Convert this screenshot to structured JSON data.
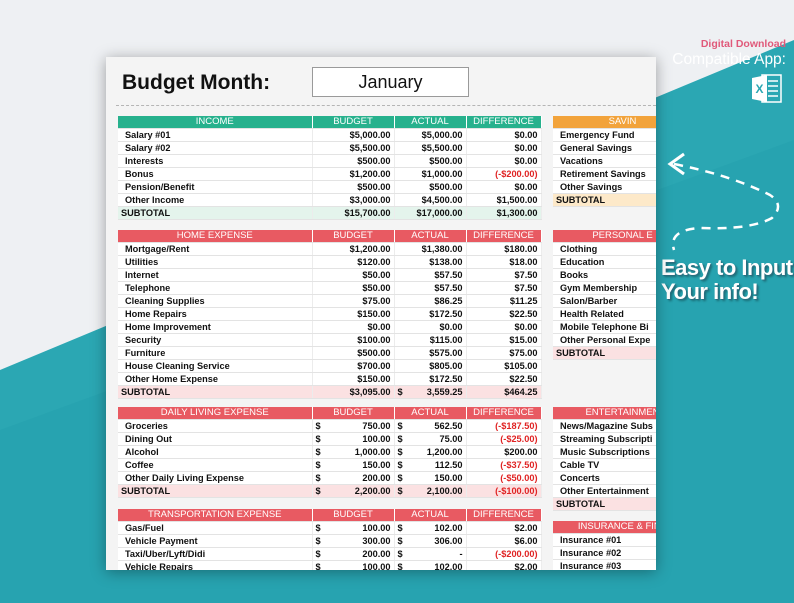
{
  "brand": {
    "digital_download": "Digital Download",
    "compatible_app": "Compatible App:",
    "app_icon": "excel-icon",
    "tagline_line1": "Easy to Input",
    "tagline_line2": "Your info!"
  },
  "header": {
    "title": "Budget Month:",
    "month": "January"
  },
  "colors": {
    "teal": "#2ba7b3",
    "green": "#27b18d",
    "red": "#e85a62",
    "orange": "#f2a33b",
    "negative": "#e02424"
  },
  "income": {
    "headers": [
      "INCOME",
      "BUDGET",
      "ACTUAL",
      "DIFFERENCE"
    ],
    "rows": [
      {
        "name": "Salary #01",
        "budget": "$5,000.00",
        "actual": "$5,000.00",
        "diff": "$0.00"
      },
      {
        "name": "Salary #02",
        "budget": "$5,500.00",
        "actual": "$5,500.00",
        "diff": "$0.00"
      },
      {
        "name": "Interests",
        "budget": "$500.00",
        "actual": "$500.00",
        "diff": "$0.00"
      },
      {
        "name": "Bonus",
        "budget": "$1,200.00",
        "actual": "$1,000.00",
        "diff": "(-$200.00)"
      },
      {
        "name": "Pension/Benefit",
        "budget": "$500.00",
        "actual": "$500.00",
        "diff": "$0.00"
      },
      {
        "name": "Other Income",
        "budget": "$3,000.00",
        "actual": "$4,500.00",
        "diff": "$1,500.00"
      }
    ],
    "subtotal": {
      "label": "SUBTOTAL",
      "budget": "$15,700.00",
      "actual": "$17,000.00",
      "diff": "$1,300.00"
    }
  },
  "home": {
    "headers": [
      "HOME EXPENSE",
      "BUDGET",
      "ACTUAL",
      "DIFFERENCE"
    ],
    "rows": [
      {
        "name": "Mortgage/Rent",
        "budget": "$1,200.00",
        "actual": "$1,380.00",
        "diff": "$180.00"
      },
      {
        "name": "Utilities",
        "budget": "$120.00",
        "actual": "$138.00",
        "diff": "$18.00"
      },
      {
        "name": "Internet",
        "budget": "$50.00",
        "actual": "$57.50",
        "diff": "$7.50"
      },
      {
        "name": "Telephone",
        "budget": "$50.00",
        "actual": "$57.50",
        "diff": "$7.50"
      },
      {
        "name": "Cleaning Supplies",
        "budget": "$75.00",
        "actual": "$86.25",
        "diff": "$11.25"
      },
      {
        "name": "Home Repairs",
        "budget": "$150.00",
        "actual": "$172.50",
        "diff": "$22.50"
      },
      {
        "name": "Home Improvement",
        "budget": "$0.00",
        "actual": "$0.00",
        "diff": "$0.00"
      },
      {
        "name": "Security",
        "budget": "$100.00",
        "actual": "$115.00",
        "diff": "$15.00"
      },
      {
        "name": "Furniture",
        "budget": "$500.00",
        "actual": "$575.00",
        "diff": "$75.00"
      },
      {
        "name": "House Cleaning Service",
        "budget": "$700.00",
        "actual": "$805.00",
        "diff": "$105.00"
      },
      {
        "name": "Other Home Expense",
        "budget": "$150.00",
        "actual": "$172.50",
        "diff": "$22.50"
      }
    ],
    "subtotal": {
      "label": "SUBTOTAL",
      "budget": "$3,095.00",
      "actual_cur": "$",
      "actual": "3,559.25",
      "diff": "$464.25"
    }
  },
  "daily": {
    "headers": [
      "DAILY LIVING EXPENSE",
      "BUDGET",
      "ACTUAL",
      "DIFFERENCE"
    ],
    "rows": [
      {
        "name": "Groceries",
        "budget": "750.00",
        "actual": "562.50",
        "diff": "(-$187.50)"
      },
      {
        "name": "Dining Out",
        "budget": "100.00",
        "actual": "75.00",
        "diff": "(-$25.00)"
      },
      {
        "name": "Alcohol",
        "budget": "1,000.00",
        "actual": "1,200.00",
        "diff": "$200.00"
      },
      {
        "name": "Coffee",
        "budget": "150.00",
        "actual": "112.50",
        "diff": "(-$37.50)"
      },
      {
        "name": "Other Daily Living Expense",
        "budget": "200.00",
        "actual": "150.00",
        "diff": "(-$50.00)"
      }
    ],
    "subtotal": {
      "label": "SUBTOTAL",
      "budget": "2,200.00",
      "actual": "2,100.00",
      "diff": "(-$100.00)"
    },
    "currency": "$"
  },
  "transport": {
    "headers": [
      "TRANSPORTATION EXPENSE",
      "BUDGET",
      "ACTUAL",
      "DIFFERENCE"
    ],
    "rows": [
      {
        "name": "Gas/Fuel",
        "budget": "100.00",
        "actual": "102.00",
        "diff": "$2.00"
      },
      {
        "name": "Vehicle Payment",
        "budget": "300.00",
        "actual": "306.00",
        "diff": "$6.00"
      },
      {
        "name": "Taxi/Uber/Lyft/Didi",
        "budget": "200.00",
        "actual": "-",
        "diff": "(-$200.00)"
      },
      {
        "name": "Vehicle Repairs",
        "budget": "100.00",
        "actual": "102.00",
        "diff": "$2.00"
      }
    ],
    "currency": "$"
  },
  "savings": {
    "header": "SAVIN",
    "rows": [
      "Emergency Fund",
      "General Savings",
      "Vacations",
      "Retirement Savings",
      "Other Savings"
    ],
    "subtotal": "SUBTOTAL"
  },
  "personal": {
    "header": "PERSONAL E",
    "rows": [
      "Clothing",
      "Education",
      "Books",
      "Gym Membership",
      "Salon/Barber",
      "Health Related",
      "Mobile Telephone Bi",
      "Other Personal Expe"
    ],
    "subtotal": "SUBTOTAL"
  },
  "entertainment": {
    "header": "ENTERTAINMEN",
    "rows": [
      "News/Magazine Subs",
      "Streaming Subscripti",
      "Music Subscriptions",
      "Cable TV",
      "Concerts",
      "Other Entertainment"
    ],
    "subtotal": "SUBTOTAL"
  },
  "insurance": {
    "header": "INSURANCE & FINA",
    "rows": [
      "Insurance #01",
      "Insurance #02",
      "Insurance #03"
    ]
  }
}
